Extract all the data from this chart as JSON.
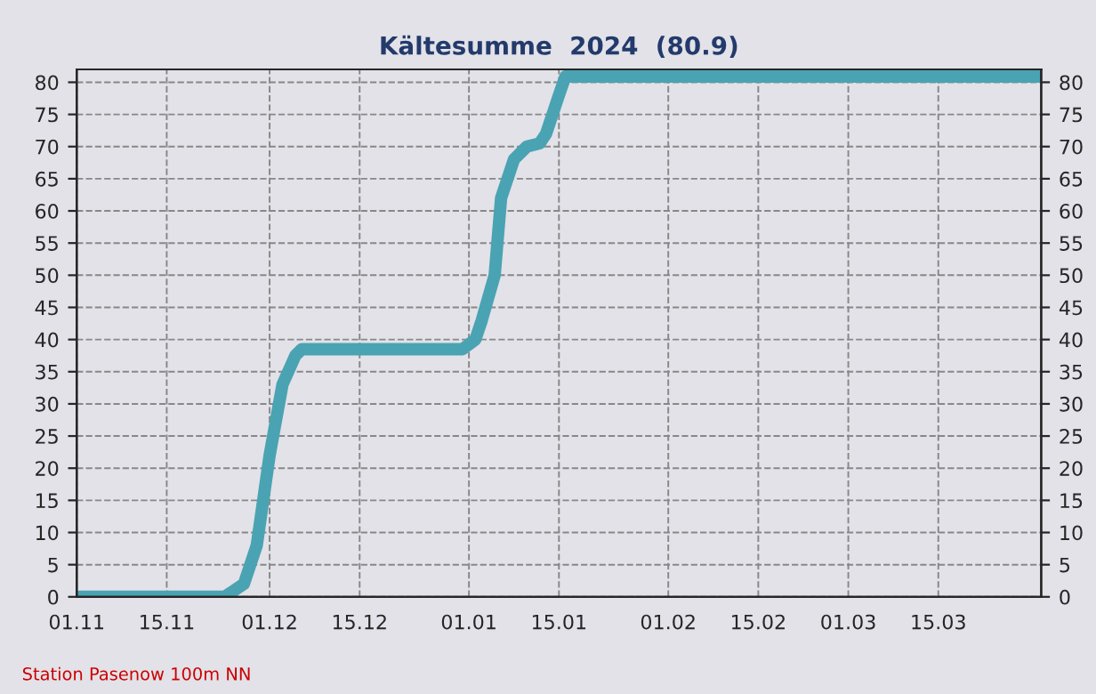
{
  "chart_data": {
    "type": "line",
    "title": "Kältesumme  2024  (80.9)",
    "x": [
      "2024-11-01",
      "2024-11-24",
      "2024-11-27",
      "2024-11-29",
      "2024-12-01",
      "2024-12-03",
      "2024-12-05",
      "2024-12-06",
      "2024-12-31",
      "2025-01-02",
      "2025-01-03",
      "2025-01-05",
      "2025-01-06",
      "2025-01-08",
      "2025-01-10",
      "2025-01-12",
      "2025-01-13",
      "2025-01-15",
      "2025-01-16",
      "2025-03-31"
    ],
    "series": [
      {
        "color": "#4aa3b2",
        "values": [
          0,
          0,
          2,
          8,
          22,
          33,
          37.5,
          38.5,
          38.5,
          40,
          43,
          50,
          62,
          68,
          70,
          70.5,
          72,
          78,
          80.9,
          80.9
        ]
      }
    ],
    "xlim": [
      "2024-11-01",
      "2025-03-31"
    ],
    "xticks": [
      {
        "value": "2024-11-01",
        "label": "01.11"
      },
      {
        "value": "2024-11-15",
        "label": "15.11"
      },
      {
        "value": "2024-12-01",
        "label": "01.12"
      },
      {
        "value": "2024-12-15",
        "label": "15.12"
      },
      {
        "value": "2025-01-01",
        "label": "01.01"
      },
      {
        "value": "2025-01-15",
        "label": "15.01"
      },
      {
        "value": "2025-02-01",
        "label": "01.02"
      },
      {
        "value": "2025-02-15",
        "label": "15.02"
      },
      {
        "value": "2025-03-01",
        "label": "01.03"
      },
      {
        "value": "2025-03-15",
        "label": "15.03"
      }
    ],
    "ylim": [
      0,
      82
    ],
    "yticks": [
      0,
      5,
      10,
      15,
      20,
      25,
      30,
      35,
      40,
      45,
      50,
      55,
      60,
      65,
      70,
      75,
      80
    ],
    "y2lim": [
      0,
      82
    ],
    "y2ticks": [
      0,
      5,
      10,
      15,
      20,
      25,
      30,
      35,
      40,
      45,
      50,
      55,
      60,
      65,
      70,
      75,
      80
    ],
    "grid": true,
    "line_style": "solid",
    "marker": "none",
    "annotations": [
      "Station Pasenow 100m NN"
    ]
  }
}
